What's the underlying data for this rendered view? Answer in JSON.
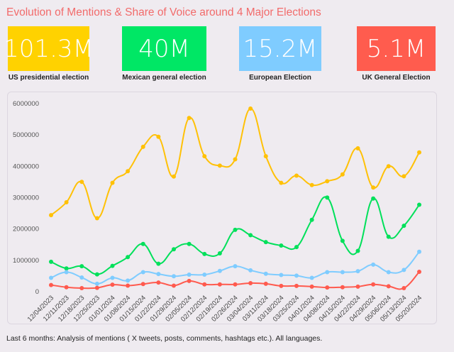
{
  "title": "Evolution of Mentions & Share of Voice around 4 Major Elections",
  "kpis": [
    {
      "value": "101.3M",
      "label": "US presidential election",
      "color": "#FFD200"
    },
    {
      "value": "40M",
      "label": "Mexican general election",
      "color": "#00E765"
    },
    {
      "value": "15.2M",
      "label": "European Election",
      "color": "#7FCCFF"
    },
    {
      "value": "5.1M",
      "label": "UK General Election",
      "color": "#FF5C4E"
    }
  ],
  "footer": "Last 6 months: Analysis of mentions ( X tweets, posts, comments, hashtags etc.). All languages.",
  "chart_data": {
    "type": "line",
    "smooth": true,
    "markers": true,
    "grid": false,
    "ylim": [
      0,
      6000000
    ],
    "yticks": [
      "0",
      "1000000",
      "2000000",
      "3000000",
      "4000000",
      "5000000",
      "6000000"
    ],
    "categories": [
      "12/04/2023",
      "12/11/2023",
      "12/18/2023",
      "12/25/2023",
      "01/01/2024",
      "01/08/2024",
      "01/15/2024",
      "01/22/2024",
      "01/29/2024",
      "02/05/2024",
      "02/12/2024",
      "02/19/2024",
      "02/26/2024",
      "03/04/2024",
      "03/11/2024",
      "03/18/2024",
      "03/25/2024",
      "04/01/2024",
      "04/08/2024",
      "04/15/2024",
      "04/22/2024",
      "04/29/2024",
      "05/06/2024",
      "05/13/2024",
      "05/20/2024"
    ],
    "series": [
      {
        "color": "#FFC107",
        "values": [
          2420000,
          2830000,
          3480000,
          2320000,
          3450000,
          3820000,
          4600000,
          4920000,
          3650000,
          5520000,
          4300000,
          4000000,
          4200000,
          5820000,
          4300000,
          3450000,
          3680000,
          3380000,
          3500000,
          3720000,
          4550000,
          3300000,
          3980000,
          3660000,
          4420000
        ]
      },
      {
        "color": "#00E05A",
        "values": [
          930000,
          720000,
          790000,
          530000,
          800000,
          1080000,
          1500000,
          870000,
          1330000,
          1500000,
          1180000,
          1200000,
          1950000,
          1780000,
          1560000,
          1450000,
          1400000,
          2270000,
          2980000,
          1600000,
          1280000,
          2950000,
          1730000,
          2080000,
          2750000
        ]
      },
      {
        "color": "#7FCCFF",
        "values": [
          420000,
          600000,
          430000,
          230000,
          420000,
          330000,
          600000,
          540000,
          470000,
          520000,
          520000,
          640000,
          790000,
          660000,
          550000,
          510000,
          490000,
          420000,
          600000,
          600000,
          630000,
          840000,
          600000,
          670000,
          1250000
        ]
      },
      {
        "color": "#FF5A4E",
        "values": [
          190000,
          120000,
          90000,
          100000,
          200000,
          170000,
          220000,
          270000,
          170000,
          320000,
          210000,
          210000,
          210000,
          250000,
          230000,
          160000,
          160000,
          140000,
          110000,
          120000,
          140000,
          210000,
          150000,
          90000,
          610000
        ]
      }
    ]
  }
}
